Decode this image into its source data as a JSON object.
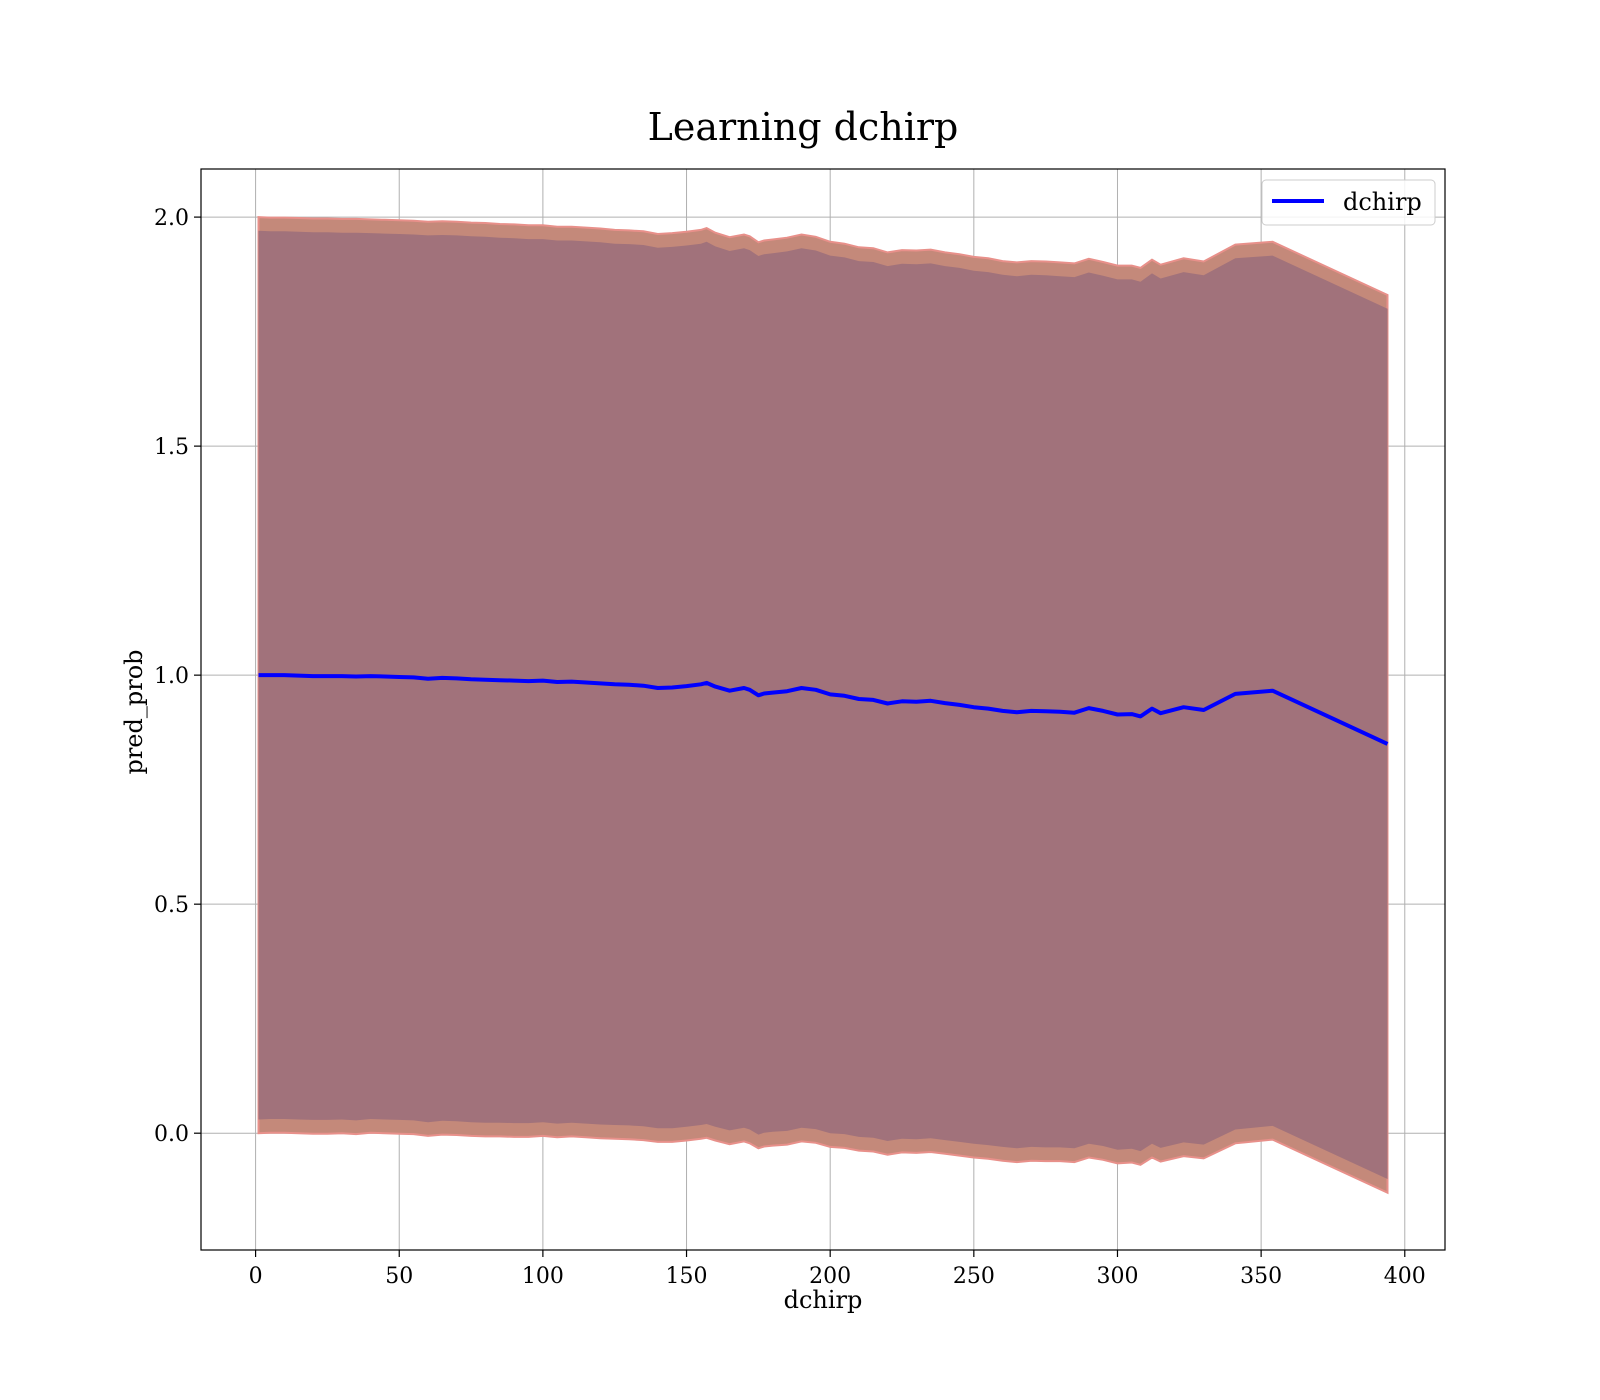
{
  "chart_data": {
    "type": "line",
    "title": "Learning dchirp",
    "xlabel": "dchirp",
    "ylabel": "pred_prob",
    "xlim": [
      -19,
      414
    ],
    "ylim": [
      -0.255,
      2.105
    ],
    "xticks": [
      0,
      50,
      100,
      150,
      200,
      250,
      300,
      350,
      400
    ],
    "xtick_labels": [
      "0",
      "50",
      "100",
      "150",
      "200",
      "250",
      "300",
      "350",
      "400"
    ],
    "yticks": [
      0.0,
      0.5,
      1.0,
      1.5,
      2.0
    ],
    "ytick_labels": [
      "0.0",
      "0.5",
      "1.0",
      "1.5",
      "2.0"
    ],
    "grid": true,
    "legend": {
      "placement": "top-right",
      "entries": [
        "dchirp"
      ]
    },
    "colors": {
      "line": "#0000ff",
      "outer_band": "#c4897a",
      "outer_band_edge": "#e8908a",
      "inner_band": "#a1727b",
      "grid": "#b0b0b0"
    },
    "series": [
      {
        "name": "dchirp",
        "x": [
          1,
          5,
          10,
          15,
          20,
          25,
          30,
          35,
          40,
          45,
          50,
          55,
          60,
          65,
          70,
          75,
          80,
          85,
          90,
          95,
          100,
          105,
          110,
          115,
          120,
          125,
          130,
          135,
          140,
          145,
          150,
          155,
          157,
          160,
          165,
          170,
          172,
          175,
          177,
          180,
          185,
          190,
          195,
          200,
          205,
          210,
          215,
          220,
          225,
          230,
          235,
          240,
          245,
          250,
          255,
          260,
          265,
          270,
          275,
          280,
          285,
          290,
          295,
          300,
          305,
          308,
          312,
          315,
          323,
          330,
          341,
          354,
          394
        ],
        "values": [
          1.0,
          1.0,
          1.0,
          0.999,
          0.998,
          0.998,
          0.998,
          0.997,
          0.998,
          0.997,
          0.996,
          0.995,
          0.992,
          0.994,
          0.993,
          0.991,
          0.99,
          0.989,
          0.988,
          0.987,
          0.988,
          0.985,
          0.986,
          0.984,
          0.982,
          0.98,
          0.979,
          0.977,
          0.972,
          0.973,
          0.976,
          0.98,
          0.983,
          0.975,
          0.966,
          0.972,
          0.968,
          0.956,
          0.96,
          0.962,
          0.965,
          0.972,
          0.968,
          0.958,
          0.955,
          0.948,
          0.946,
          0.938,
          0.943,
          0.942,
          0.944,
          0.939,
          0.935,
          0.93,
          0.927,
          0.922,
          0.919,
          0.922,
          0.921,
          0.92,
          0.918,
          0.928,
          0.922,
          0.914,
          0.915,
          0.91,
          0.927,
          0.917,
          0.93,
          0.924,
          0.959,
          0.966,
          0.85
        ],
        "outer_upper": [
          2.0,
          1.999,
          1.999,
          1.998,
          1.997,
          1.997,
          1.996,
          1.996,
          1.995,
          1.994,
          1.993,
          1.992,
          1.99,
          1.991,
          1.99,
          1.988,
          1.987,
          1.985,
          1.984,
          1.982,
          1.982,
          1.979,
          1.979,
          1.977,
          1.975,
          1.972,
          1.971,
          1.969,
          1.963,
          1.965,
          1.968,
          1.972,
          1.976,
          1.966,
          1.956,
          1.962,
          1.958,
          1.945,
          1.949,
          1.951,
          1.955,
          1.962,
          1.957,
          1.946,
          1.942,
          1.934,
          1.932,
          1.923,
          1.928,
          1.927,
          1.929,
          1.923,
          1.919,
          1.913,
          1.91,
          1.904,
          1.901,
          1.904,
          1.903,
          1.901,
          1.899,
          1.909,
          1.902,
          1.894,
          1.894,
          1.889,
          1.907,
          1.896,
          1.91,
          1.903,
          1.94,
          1.946,
          1.83
        ],
        "outer_lower": [
          0.0,
          0.001,
          0.001,
          0.0,
          -0.001,
          -0.001,
          0.0,
          -0.002,
          0.001,
          0.0,
          -0.001,
          -0.002,
          -0.006,
          -0.003,
          -0.004,
          -0.006,
          -0.007,
          -0.007,
          -0.008,
          -0.008,
          -0.006,
          -0.009,
          -0.007,
          -0.009,
          -0.011,
          -0.012,
          -0.013,
          -0.015,
          -0.019,
          -0.019,
          -0.016,
          -0.012,
          -0.01,
          -0.016,
          -0.024,
          -0.018,
          -0.022,
          -0.033,
          -0.029,
          -0.027,
          -0.025,
          -0.018,
          -0.021,
          -0.03,
          -0.032,
          -0.038,
          -0.04,
          -0.047,
          -0.042,
          -0.043,
          -0.041,
          -0.045,
          -0.049,
          -0.053,
          -0.056,
          -0.06,
          -0.063,
          -0.06,
          -0.061,
          -0.061,
          -0.063,
          -0.053,
          -0.058,
          -0.066,
          -0.064,
          -0.069,
          -0.053,
          -0.062,
          -0.05,
          -0.055,
          -0.022,
          -0.014,
          -0.13
        ],
        "inner_upper": [
          1.97,
          1.969,
          1.969,
          1.968,
          1.967,
          1.967,
          1.966,
          1.966,
          1.965,
          1.964,
          1.963,
          1.962,
          1.96,
          1.961,
          1.96,
          1.958,
          1.957,
          1.955,
          1.954,
          1.952,
          1.952,
          1.949,
          1.949,
          1.947,
          1.945,
          1.942,
          1.941,
          1.939,
          1.933,
          1.935,
          1.938,
          1.942,
          1.946,
          1.936,
          1.926,
          1.932,
          1.928,
          1.915,
          1.919,
          1.921,
          1.925,
          1.932,
          1.927,
          1.916,
          1.912,
          1.904,
          1.902,
          1.893,
          1.898,
          1.897,
          1.899,
          1.893,
          1.889,
          1.883,
          1.88,
          1.874,
          1.871,
          1.874,
          1.873,
          1.871,
          1.869,
          1.879,
          1.872,
          1.864,
          1.864,
          1.859,
          1.877,
          1.866,
          1.88,
          1.873,
          1.91,
          1.916,
          1.8
        ],
        "inner_lower": [
          0.03,
          0.031,
          0.031,
          0.03,
          0.029,
          0.029,
          0.03,
          0.028,
          0.031,
          0.03,
          0.029,
          0.028,
          0.024,
          0.027,
          0.026,
          0.024,
          0.023,
          0.023,
          0.022,
          0.022,
          0.024,
          0.021,
          0.023,
          0.021,
          0.019,
          0.018,
          0.017,
          0.015,
          0.011,
          0.011,
          0.014,
          0.018,
          0.02,
          0.014,
          0.006,
          0.012,
          0.008,
          -0.003,
          0.001,
          0.003,
          0.005,
          0.012,
          0.009,
          0.0,
          -0.002,
          -0.008,
          -0.01,
          -0.017,
          -0.012,
          -0.013,
          -0.011,
          -0.015,
          -0.019,
          -0.023,
          -0.026,
          -0.03,
          -0.033,
          -0.03,
          -0.031,
          -0.031,
          -0.033,
          -0.023,
          -0.028,
          -0.036,
          -0.034,
          -0.039,
          -0.023,
          -0.032,
          -0.02,
          -0.025,
          0.008,
          0.016,
          -0.1
        ]
      }
    ]
  }
}
